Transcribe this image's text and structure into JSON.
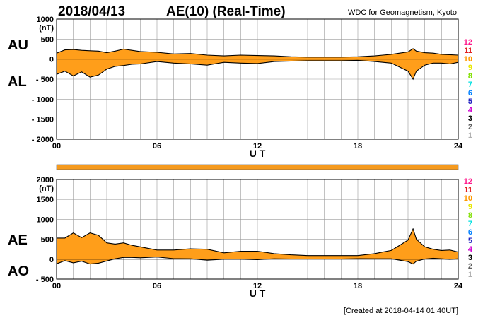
{
  "header": {
    "date": "2018/04/13",
    "title": "AE(10) (Real-Time)",
    "source": "WDC for Geomagnetism, Kyoto"
  },
  "footer": {
    "created": "[Created at 2018-04-14 01:40UT]"
  },
  "colors": {
    "fill": "#ff9e1a",
    "line": "#000000",
    "grid": "#9a9a9a",
    "strip": "#f59a1e"
  },
  "station_count_legend": [
    {
      "label": "12",
      "color": "#ff1a8c"
    },
    {
      "label": "11",
      "color": "#e02020"
    },
    {
      "label": "10",
      "color": "#ff9900"
    },
    {
      "label": "9",
      "color": "#e8e800"
    },
    {
      "label": "8",
      "color": "#80e000"
    },
    {
      "label": "7",
      "color": "#00e0e0"
    },
    {
      "label": "6",
      "color": "#0080ff"
    },
    {
      "label": "5",
      "color": "#2020c0"
    },
    {
      "label": "4",
      "color": "#d000d0"
    },
    {
      "label": "3",
      "color": "#000000"
    },
    {
      "label": "2",
      "color": "#606060"
    },
    {
      "label": "1",
      "color": "#b0b0b0"
    }
  ],
  "chart_data": [
    {
      "type": "area",
      "unit": "(nT)",
      "upper_label": "AU",
      "lower_label": "AL",
      "xlabel": "U T",
      "xlim": [
        0,
        24
      ],
      "ylim": [
        -2000,
        1000
      ],
      "xticks": [
        0,
        6,
        12,
        18,
        24
      ],
      "xtick_labels": [
        "00",
        "06",
        "12",
        "18",
        "24"
      ],
      "yticks": [
        1000,
        500,
        0,
        -500,
        -1000,
        -1500,
        -2000
      ],
      "ytick_labels": [
        "1000",
        "500",
        "0",
        "- 500",
        "- 1000",
        "- 1500",
        "- 2000"
      ],
      "grid": true,
      "series": [
        {
          "name": "AU",
          "x": [
            0,
            0.5,
            1,
            1.5,
            2,
            2.5,
            3,
            3.5,
            4,
            4.5,
            5,
            6,
            7,
            8,
            9,
            10,
            11,
            12,
            13,
            14,
            15,
            16,
            17,
            18,
            19,
            19.5,
            20,
            20.5,
            21,
            21.3,
            21.5,
            22,
            22.5,
            23,
            23.5,
            24
          ],
          "values": [
            150,
            230,
            240,
            220,
            210,
            200,
            160,
            200,
            250,
            220,
            190,
            170,
            130,
            140,
            100,
            80,
            100,
            90,
            80,
            60,
            50,
            50,
            50,
            60,
            80,
            100,
            120,
            150,
            180,
            260,
            200,
            160,
            150,
            120,
            110,
            100
          ]
        },
        {
          "name": "AL",
          "x": [
            0,
            0.5,
            1,
            1.5,
            2,
            2.5,
            3,
            3.5,
            4,
            4.5,
            5,
            6,
            7,
            8,
            9,
            10,
            11,
            12,
            13,
            14,
            15,
            16,
            17,
            18,
            19,
            19.5,
            20,
            20.5,
            21,
            21.3,
            21.5,
            22,
            22.5,
            23,
            23.5,
            24
          ],
          "values": [
            -380,
            -300,
            -420,
            -320,
            -450,
            -400,
            -250,
            -180,
            -160,
            -130,
            -120,
            -60,
            -100,
            -120,
            -150,
            -80,
            -100,
            -110,
            -60,
            -50,
            -40,
            -40,
            -40,
            -30,
            -60,
            -80,
            -100,
            -200,
            -300,
            -500,
            -300,
            -150,
            -100,
            -100,
            -120,
            -80
          ]
        }
      ]
    },
    {
      "type": "area",
      "unit": "(nT)",
      "upper_label": "AE",
      "lower_label": "AO",
      "xlabel": "U T",
      "xlim": [
        0,
        24
      ],
      "ylim": [
        -500,
        2000
      ],
      "xticks": [
        0,
        6,
        12,
        18,
        24
      ],
      "xtick_labels": [
        "00",
        "06",
        "12",
        "18",
        "24"
      ],
      "yticks": [
        2000,
        1500,
        1000,
        500,
        0,
        -500
      ],
      "ytick_labels": [
        "2000",
        "1500",
        "1000",
        "500",
        "0",
        "- 500"
      ],
      "grid": true,
      "series": [
        {
          "name": "AE",
          "x": [
            0,
            0.5,
            1,
            1.5,
            2,
            2.5,
            3,
            3.5,
            4,
            4.5,
            5,
            6,
            7,
            8,
            9,
            10,
            11,
            12,
            13,
            14,
            15,
            16,
            17,
            18,
            19,
            19.5,
            20,
            20.5,
            21,
            21.3,
            21.5,
            22,
            22.5,
            23,
            23.5,
            24
          ],
          "values": [
            530,
            530,
            660,
            540,
            660,
            600,
            410,
            380,
            410,
            350,
            310,
            230,
            230,
            260,
            250,
            160,
            200,
            200,
            140,
            110,
            90,
            90,
            90,
            90,
            140,
            180,
            220,
            350,
            480,
            760,
            500,
            310,
            250,
            220,
            230,
            180
          ]
        },
        {
          "name": "AO",
          "x": [
            0,
            0.5,
            1,
            1.5,
            2,
            2.5,
            3,
            3.5,
            4,
            4.5,
            5,
            6,
            7,
            8,
            9,
            10,
            11,
            12,
            13,
            14,
            15,
            16,
            17,
            18,
            19,
            19.5,
            20,
            20.5,
            21,
            21.3,
            21.5,
            22,
            22.5,
            23,
            23.5,
            24
          ],
          "values": [
            -115,
            -35,
            -90,
            -50,
            -120,
            -100,
            -45,
            10,
            45,
            45,
            35,
            55,
            15,
            10,
            -25,
            0,
            0,
            -10,
            10,
            5,
            5,
            5,
            5,
            15,
            10,
            10,
            10,
            -25,
            -60,
            -120,
            -50,
            5,
            25,
            10,
            -5,
            10
          ]
        }
      ]
    }
  ]
}
